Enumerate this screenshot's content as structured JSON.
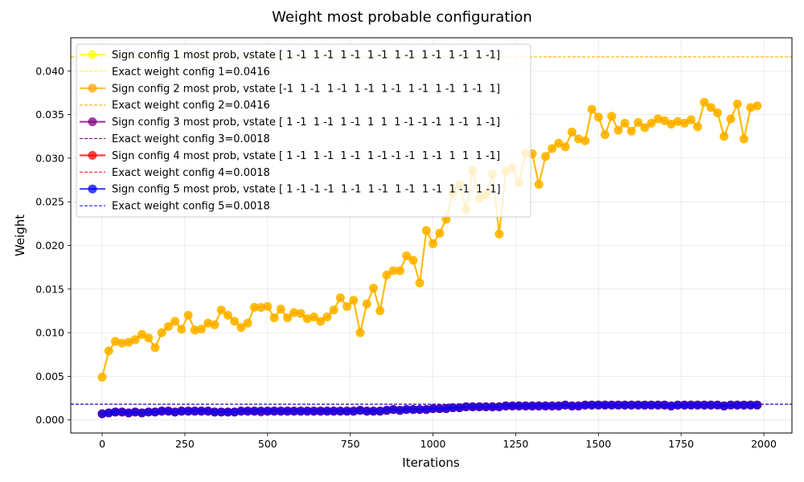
{
  "chart_data": {
    "type": "line",
    "title": "Weight most probable configuration",
    "xlabel": "Iterations",
    "ylabel": "Weight",
    "xlim": [
      -95,
      2085
    ],
    "ylim": [
      -0.0015,
      0.0438
    ],
    "x_ticks": [
      0,
      250,
      500,
      750,
      1000,
      1250,
      1500,
      1750,
      2000
    ],
    "x_tick_labels": [
      "0",
      "250",
      "500",
      "750",
      "1000",
      "1250",
      "1500",
      "1750",
      "2000"
    ],
    "y_ticks": [
      0,
      0.005,
      0.01,
      0.015,
      0.02,
      0.025,
      0.03,
      0.035,
      0.04
    ],
    "y_tick_labels": [
      "0.000",
      "0.005",
      "0.010",
      "0.015",
      "0.020",
      "0.025",
      "0.030",
      "0.035",
      "0.040"
    ],
    "grid": true,
    "legend_position": "upper-left",
    "x": [
      0,
      20,
      40,
      60,
      80,
      100,
      120,
      140,
      160,
      180,
      200,
      220,
      240,
      260,
      280,
      300,
      320,
      340,
      360,
      380,
      400,
      420,
      440,
      460,
      480,
      500,
      520,
      540,
      560,
      580,
      600,
      620,
      640,
      660,
      680,
      700,
      720,
      740,
      760,
      780,
      800,
      820,
      840,
      860,
      880,
      900,
      920,
      940,
      960,
      980,
      1000,
      1020,
      1040,
      1060,
      1080,
      1100,
      1120,
      1140,
      1160,
      1180,
      1200,
      1220,
      1240,
      1260,
      1280,
      1300,
      1320,
      1340,
      1360,
      1380,
      1400,
      1420,
      1440,
      1460,
      1480,
      1500,
      1520,
      1540,
      1560,
      1580,
      1600,
      1620,
      1640,
      1660,
      1680,
      1700,
      1720,
      1740,
      1760,
      1780,
      1800,
      1820,
      1840,
      1860,
      1880,
      1900,
      1920,
      1940,
      1960,
      1980
    ],
    "series": [
      {
        "name": "Sign config 1 most prob, vstate [ 1 -1  1 -1  1 -1  1 -1  1 -1  1 -1  1 -1  1 -1]",
        "color": "#ffff00",
        "values": [
          0.0049,
          0.0079,
          0.009,
          0.0088,
          0.0089,
          0.0092,
          0.0098,
          0.0094,
          0.0083,
          0.01,
          0.0107,
          0.0113,
          0.0104,
          0.012,
          0.0103,
          0.0104,
          0.0111,
          0.0109,
          0.0126,
          0.012,
          0.0113,
          0.0106,
          0.0111,
          0.0129,
          0.0129,
          0.013,
          0.0117,
          0.0127,
          0.0117,
          0.0123,
          0.0122,
          0.0116,
          0.0118,
          0.0113,
          0.0118,
          0.0126,
          0.014,
          0.013,
          0.0137,
          0.01,
          0.0133,
          0.0151,
          0.0125,
          0.0166,
          0.0171,
          0.0171,
          0.0188,
          0.0183,
          0.0157,
          0.0217,
          0.0202,
          0.0214,
          0.023,
          0.026,
          0.027,
          0.0241,
          0.0286,
          0.0254,
          0.0258,
          0.0282,
          0.0213,
          0.0285,
          0.0289,
          0.0272,
          0.0306,
          0.0305,
          0.027,
          0.0302,
          0.0311,
          0.0317,
          0.0313,
          0.033,
          0.0322,
          0.032,
          0.0356,
          0.0347,
          0.0327,
          0.0348,
          0.0332,
          0.034,
          0.0331,
          0.0341,
          0.0335,
          0.034,
          0.0345,
          0.0343,
          0.0339,
          0.0342,
          0.034,
          0.0344,
          0.0336,
          0.0364,
          0.0358,
          0.0352,
          0.0325,
          0.0345,
          0.0362,
          0.0322,
          0.0358,
          0.036
        ]
      },
      {
        "name": "Sign config 2 most prob, vstate [-1  1 -1  1 -1  1 -1  1 -1  1 -1  1 -1  1 -1  1]",
        "color": "#ffa500",
        "values": [
          0.0049,
          0.0079,
          0.009,
          0.0088,
          0.0089,
          0.0092,
          0.0098,
          0.0094,
          0.0083,
          0.01,
          0.0107,
          0.0113,
          0.0104,
          0.012,
          0.0103,
          0.0104,
          0.0111,
          0.0109,
          0.0126,
          0.012,
          0.0113,
          0.0106,
          0.0111,
          0.0129,
          0.0129,
          0.013,
          0.0117,
          0.0127,
          0.0117,
          0.0123,
          0.0122,
          0.0116,
          0.0118,
          0.0113,
          0.0118,
          0.0126,
          0.014,
          0.013,
          0.0137,
          0.01,
          0.0133,
          0.0151,
          0.0125,
          0.0166,
          0.0171,
          0.0171,
          0.0188,
          0.0183,
          0.0157,
          0.0217,
          0.0202,
          0.0214,
          0.023,
          0.026,
          0.027,
          0.0241,
          0.0286,
          0.0254,
          0.0258,
          0.0282,
          0.0213,
          0.0285,
          0.0289,
          0.0272,
          0.0306,
          0.0305,
          0.027,
          0.0302,
          0.0311,
          0.0317,
          0.0313,
          0.033,
          0.0322,
          0.032,
          0.0356,
          0.0347,
          0.0327,
          0.0348,
          0.0332,
          0.034,
          0.0331,
          0.0341,
          0.0335,
          0.034,
          0.0345,
          0.0343,
          0.0339,
          0.0342,
          0.034,
          0.0344,
          0.0336,
          0.0364,
          0.0358,
          0.0352,
          0.0325,
          0.0345,
          0.0362,
          0.0322,
          0.0358,
          0.036
        ]
      },
      {
        "name": "Sign config 3 most prob, vstate [ 1 -1  1 -1  1 -1  1  1  1 -1 -1 -1  1 -1  1 -1]",
        "color": "#800080",
        "values": [
          0.0007,
          0.0008,
          0.0009,
          0.0009,
          0.0008,
          0.0009,
          0.0008,
          0.0009,
          0.0009,
          0.001,
          0.001,
          0.0009,
          0.001,
          0.001,
          0.001,
          0.001,
          0.001,
          0.0009,
          0.0009,
          0.0009,
          0.0009,
          0.001,
          0.001,
          0.001,
          0.001,
          0.001,
          0.001,
          0.001,
          0.001,
          0.001,
          0.001,
          0.001,
          0.001,
          0.001,
          0.001,
          0.001,
          0.001,
          0.001,
          0.001,
          0.0011,
          0.001,
          0.001,
          0.001,
          0.0011,
          0.0012,
          0.0011,
          0.0012,
          0.0012,
          0.0012,
          0.0012,
          0.0013,
          0.0013,
          0.0013,
          0.0014,
          0.0014,
          0.0015,
          0.0015,
          0.0015,
          0.0015,
          0.0015,
          0.0015,
          0.0016,
          0.0016,
          0.0016,
          0.0016,
          0.0016,
          0.0016,
          0.0016,
          0.0016,
          0.0016,
          0.0017,
          0.0016,
          0.0016,
          0.0017,
          0.0017,
          0.0017,
          0.0017,
          0.0017,
          0.0017,
          0.0017,
          0.0017,
          0.0017,
          0.0017,
          0.0017,
          0.0017,
          0.0017,
          0.0016,
          0.0017,
          0.0017,
          0.0017,
          0.0017,
          0.0017,
          0.0017,
          0.0017,
          0.0016,
          0.0017,
          0.0017,
          0.0017,
          0.0017,
          0.0017
        ]
      },
      {
        "name": "Sign config 4 most prob, vstate [ 1 -1  1 -1  1 -1  1 -1 -1 -1  1 -1  1  1  1 -1]",
        "color": "#ff0000",
        "values": [
          0.0007,
          0.0008,
          0.0009,
          0.0009,
          0.0008,
          0.0009,
          0.0008,
          0.0009,
          0.0009,
          0.001,
          0.001,
          0.0009,
          0.001,
          0.001,
          0.001,
          0.001,
          0.001,
          0.0009,
          0.0009,
          0.0009,
          0.0009,
          0.001,
          0.001,
          0.001,
          0.0009,
          0.001,
          0.001,
          0.001,
          0.001,
          0.001,
          0.001,
          0.001,
          0.001,
          0.001,
          0.001,
          0.001,
          0.001,
          0.001,
          0.001,
          0.0011,
          0.001,
          0.001,
          0.001,
          0.0011,
          0.0012,
          0.0011,
          0.0012,
          0.0012,
          0.0012,
          0.0012,
          0.0013,
          0.0013,
          0.0013,
          0.0014,
          0.0014,
          0.0015,
          0.0015,
          0.0015,
          0.0015,
          0.0015,
          0.0015,
          0.0016,
          0.0016,
          0.0016,
          0.0016,
          0.0016,
          0.0016,
          0.0016,
          0.0016,
          0.0016,
          0.0017,
          0.0016,
          0.0016,
          0.0017,
          0.0017,
          0.0017,
          0.0017,
          0.0017,
          0.0017,
          0.0017,
          0.0017,
          0.0017,
          0.0017,
          0.0017,
          0.0017,
          0.0017,
          0.0016,
          0.0017,
          0.0017,
          0.0017,
          0.0017,
          0.0017,
          0.0017,
          0.0017,
          0.0016,
          0.0017,
          0.0017,
          0.0017,
          0.0017,
          0.0017
        ]
      },
      {
        "name": "Sign config 5 most prob, vstate [ 1 -1 -1 -1  1 -1  1 -1  1 -1  1 -1  1 -1  1 -1]",
        "color": "#0000ff",
        "values": [
          0.0007,
          0.0008,
          0.0009,
          0.0009,
          0.0008,
          0.0009,
          0.0008,
          0.0009,
          0.0009,
          0.001,
          0.001,
          0.0009,
          0.001,
          0.001,
          0.001,
          0.001,
          0.001,
          0.0009,
          0.0009,
          0.0009,
          0.0009,
          0.001,
          0.001,
          0.001,
          0.001,
          0.001,
          0.001,
          0.001,
          0.001,
          0.001,
          0.001,
          0.001,
          0.001,
          0.001,
          0.001,
          0.001,
          0.001,
          0.001,
          0.001,
          0.0011,
          0.001,
          0.001,
          0.001,
          0.0011,
          0.0012,
          0.0011,
          0.0012,
          0.0012,
          0.0012,
          0.0012,
          0.0013,
          0.0013,
          0.0013,
          0.0014,
          0.0014,
          0.0015,
          0.0015,
          0.0015,
          0.0015,
          0.0015,
          0.0015,
          0.0016,
          0.0016,
          0.0016,
          0.0016,
          0.0016,
          0.0016,
          0.0016,
          0.0016,
          0.0016,
          0.0017,
          0.0016,
          0.0016,
          0.0017,
          0.0017,
          0.0017,
          0.0017,
          0.0017,
          0.0017,
          0.0017,
          0.0017,
          0.0017,
          0.0017,
          0.0017,
          0.0017,
          0.0017,
          0.0016,
          0.0017,
          0.0017,
          0.0017,
          0.0017,
          0.0017,
          0.0017,
          0.0017,
          0.0016,
          0.0017,
          0.0017,
          0.0017,
          0.0017,
          0.0017
        ]
      }
    ],
    "reference_lines": [
      {
        "name": "Exact weight config 1=0.0416",
        "value": 0.0416,
        "color": "#ffff00"
      },
      {
        "name": "Exact weight config 2=0.0416",
        "value": 0.0416,
        "color": "#ffa500"
      },
      {
        "name": "Exact weight config 3=0.0018",
        "value": 0.0018,
        "color": "#800080"
      },
      {
        "name": "Exact weight config 4=0.0018",
        "value": 0.0018,
        "color": "#ff0000"
      },
      {
        "name": "Exact weight config 5=0.0018",
        "value": 0.0018,
        "color": "#0000ff"
      }
    ]
  }
}
